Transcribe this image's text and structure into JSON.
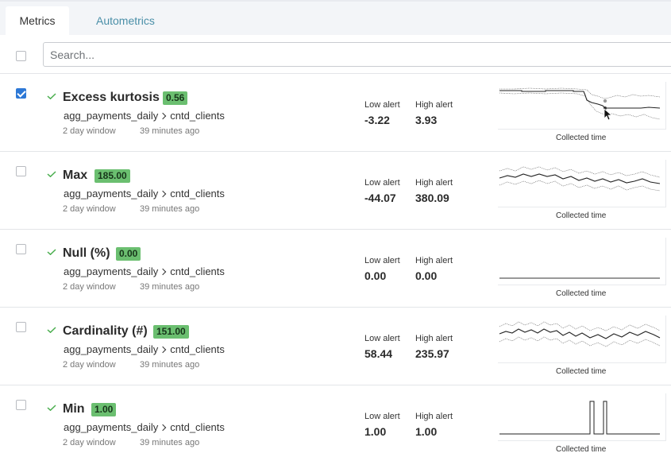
{
  "tabs": [
    {
      "label": "Metrics",
      "active": true
    },
    {
      "label": "Autometrics",
      "active": false
    }
  ],
  "search": {
    "placeholder": "Search..."
  },
  "labels": {
    "low_alert": "Low alert",
    "high_alert": "High alert",
    "collected_time": "Collected time"
  },
  "colors": {
    "badge_green": "#6bbf70",
    "check_green": "#4caf50",
    "checkbox_blue": "#2d78d6",
    "tab_link": "#4a8fa8"
  },
  "metrics": [
    {
      "name": "Excess kurtosis",
      "value": "0.56",
      "table": "agg_payments_daily",
      "column": "cntd_clients",
      "window": "2 day window",
      "ago": "39 minutes ago",
      "low": "-3.22",
      "high": "3.93",
      "selected": true
    },
    {
      "name": "Max",
      "value": "185.00",
      "table": "agg_payments_daily",
      "column": "cntd_clients",
      "window": "2 day window",
      "ago": "39 minutes ago",
      "low": "-44.07",
      "high": "380.09",
      "selected": false
    },
    {
      "name": "Null (%)",
      "value": "0.00",
      "table": "agg_payments_daily",
      "column": "cntd_clients",
      "window": "2 day window",
      "ago": "39 minutes ago",
      "low": "0.00",
      "high": "0.00",
      "selected": false
    },
    {
      "name": "Cardinality (#)",
      "value": "151.00",
      "table": "agg_payments_daily",
      "column": "cntd_clients",
      "window": "2 day window",
      "ago": "39 minutes ago",
      "low": "58.44",
      "high": "235.97",
      "selected": false
    },
    {
      "name": "Min",
      "value": "1.00",
      "table": "agg_payments_daily",
      "column": "cntd_clients",
      "window": "2 day window",
      "ago": "39 minutes ago",
      "low": "1.00",
      "high": "1.00",
      "selected": false
    }
  ]
}
